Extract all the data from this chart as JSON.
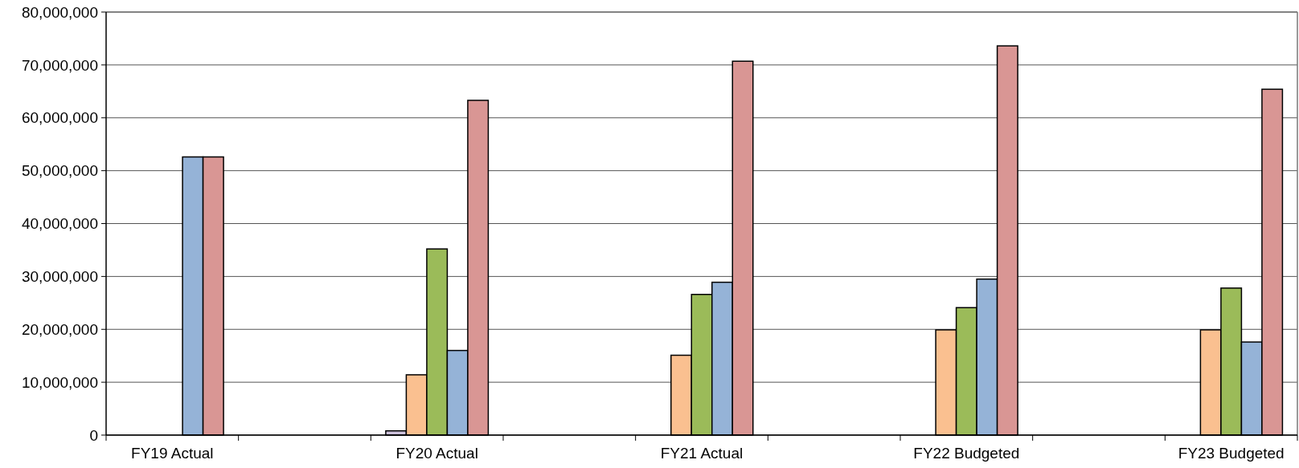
{
  "chart_data": {
    "type": "bar",
    "categories": [
      "FY19 Actual",
      null,
      "FY20 Actual",
      null,
      "FY21 Actual",
      null,
      "FY22 Budgeted",
      null,
      "FY23 Budgeted"
    ],
    "series": [
      {
        "color": "#ccc0da",
        "values": [
          null,
          null,
          800000,
          null,
          null,
          null,
          null,
          null,
          null
        ]
      },
      {
        "color": "#fac090",
        "values": [
          null,
          null,
          11400000,
          null,
          15100000,
          null,
          19900000,
          null,
          19900000
        ]
      },
      {
        "color": "#9bbb59",
        "values": [
          null,
          null,
          35200000,
          null,
          26600000,
          null,
          24100000,
          null,
          27800000
        ]
      },
      {
        "color": "#95b3d7",
        "values": [
          52600000,
          null,
          16000000,
          null,
          28900000,
          null,
          29500000,
          null,
          17600000
        ]
      },
      {
        "color": "#d99694",
        "values": [
          52600000,
          null,
          63300000,
          null,
          70700000,
          null,
          73600000,
          null,
          65400000
        ]
      }
    ],
    "ylim": [
      0,
      80000000
    ],
    "yticks": [
      {
        "value": 0,
        "label": "0"
      },
      {
        "value": 10000000,
        "label": "10,000,000"
      },
      {
        "value": 20000000,
        "label": "20,000,000"
      },
      {
        "value": 30000000,
        "label": "30,000,000"
      },
      {
        "value": 40000000,
        "label": "40,000,000"
      },
      {
        "value": 50000000,
        "label": "50,000,000"
      },
      {
        "value": 60000000,
        "label": "60,000,000"
      },
      {
        "value": 70000000,
        "label": "70,000,000"
      },
      {
        "value": 80000000,
        "label": "80,000,000"
      }
    ],
    "grid": "y"
  }
}
